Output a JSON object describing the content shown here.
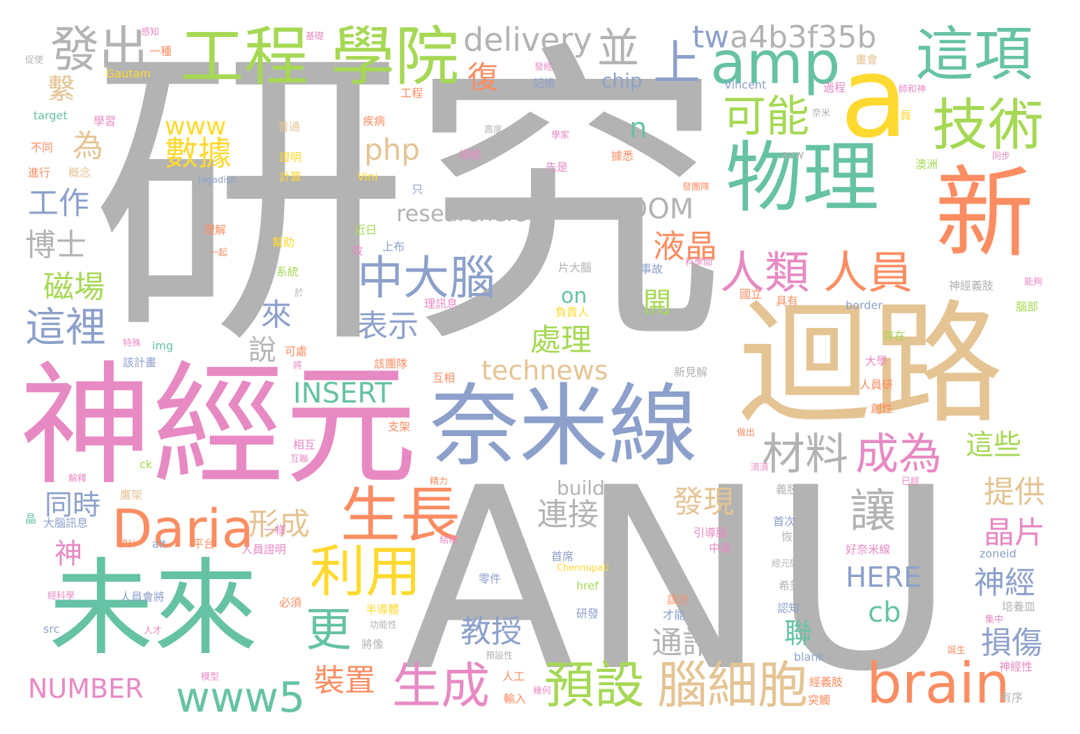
{
  "words": {
    "yanjiu": "研究",
    "anu": "ANU",
    "shenjingyuan": "神經元",
    "huilu": "迴路",
    "naimixian": "奈米線",
    "wuli": "物理",
    "xin": "新",
    "weilai": "未來",
    "a": "a",
    "gongcheng": "工程",
    "xueyuan": "學院",
    "zhexiang": "這項",
    "jishu": "技術",
    "amp": "amp",
    "shang": "上",
    "fachu": "發出",
    "bing": "並",
    "delivery": "delivery",
    "tw": "tw",
    "a4b": "a4b3f35b",
    "keneng": "可能",
    "renlei": "人類",
    "renyuan": "人員",
    "zhongdanao": "中大腦",
    "daria": "Daria",
    "shengzhang": "生長",
    "liyong": "利用",
    "geng": "更",
    "shengcheng": "生成",
    "www5": "www5",
    "yushe": "預設",
    "naoxibao": "腦細胞",
    "brain": "brain",
    "cailiao": "材料",
    "chengwei": "成為",
    "rang": "讓",
    "shuju": "數據",
    "xi": "繫",
    "gongzuo": "工作",
    "boshi": "博士",
    "cichang": "磁場",
    "zheli": "這裡",
    "php": "php",
    "fu": "復",
    "www": "www",
    "wei": "為",
    "n": "n",
    "researchers": "researchers",
    "random": "RANDOM",
    "yejing": "液晶",
    "biaoshi": "表示",
    "lai": "來",
    "chuli": "處理",
    "on": "on",
    "kai": "開",
    "technews": "technews",
    "insert": "INSERT",
    "shuo": "說",
    "xingcheng": "形成",
    "tongshi": "同時",
    "shen": "神",
    "lianjie": "連接",
    "faxian": "發現",
    "build": "build",
    "here": "HERE",
    "cb": "cb",
    "tigong": "提供",
    "jingpian": "晶片",
    "shenjing": "神經",
    "sunshang": "損傷",
    "zhexie": "這些",
    "jiaoshou": "教授",
    "tongxun": "通訊",
    "lian": "聯",
    "zhuangzhi": "裝置",
    "number": "NUMBER",
    "chip": "chip"
  },
  "small_words": [
    "促使",
    "感知",
    "一種",
    "基礎",
    "Gautam",
    "target",
    "學習",
    "不同",
    "進行",
    "概念",
    "普通",
    "證明",
    "計算",
    "Jagadish",
    "疾病",
    "細胞",
    "先是",
    "學家",
    "據悉",
    "高度",
    "發經",
    "記憶",
    "工程",
    "過程",
    "Vincent",
    "師和神",
    "奈米",
    "員",
    "avw",
    "澳洲",
    "同步",
    "發團隊",
    "Vini",
    "只",
    "近日",
    "上布",
    "效",
    "理解",
    "一起",
    "幫助",
    "系統",
    "於",
    "理訊息",
    "片大腦",
    "負責人",
    "事故",
    "科學間",
    "國立",
    "具有",
    "神經義肢",
    "能夠",
    "腦部",
    "border",
    "特殊",
    "img",
    "可處",
    "該計畫",
    "將",
    "該團隊",
    "互相",
    "存在",
    "大學",
    "人員研",
    "新見解",
    "創性",
    "支架",
    "相互",
    "互聯",
    "ck",
    "精力",
    "做出",
    "濟濟",
    "已經",
    "義肢",
    "解釋",
    "晶",
    "鷹架",
    "大腦訊息",
    "預計",
    "alt",
    "平台",
    "一樣",
    "人員證明",
    "結構",
    "引導腦",
    "首次",
    "恢",
    "中風",
    "好奈米線",
    "經元間",
    "zoneid",
    "首席",
    "Chennupati",
    "零件",
    "href",
    "經科學",
    "人員會將",
    "必須",
    "半導體",
    "該計",
    "才能",
    "研發",
    "希望",
    "認知",
    "培養皿",
    "集中",
    "src",
    "人才",
    "功能性",
    "將像",
    "預設性",
    "人工",
    "blank",
    "誕生",
    "神經性",
    "模型",
    "輸入",
    "幾何",
    "經義肢",
    "突觸",
    "有序",
    "畫會"
  ],
  "colors": {
    "gray": "#b3b3b3",
    "green": "#66c2a5",
    "orange": "#fc8d62",
    "blue": "#8da0cb",
    "pink": "#e78ac3",
    "lime": "#a6d854",
    "yellow": "#ffd92f",
    "tan": "#e5c494"
  }
}
